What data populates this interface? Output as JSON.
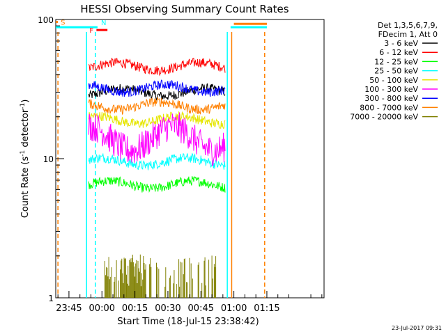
{
  "chart_data": {
    "type": "line",
    "title": "HESSI Observing Summary Count Rates",
    "xlabel": "Start Time (18-Jul-15 23:38:42)",
    "ylabel_main": "Count Rate (s",
    "ylabel_sup1": "-1",
    "ylabel_mid": " detector",
    "ylabel_sup2": "-1",
    "ylabel_end": ")",
    "yscale": "log",
    "ylim": [
      1,
      100
    ],
    "xlim_minutes": [
      -21,
      101
    ],
    "y_tick_labels": [
      {
        "label": "100",
        "value": 100
      },
      {
        "label": "10",
        "value": 10
      },
      {
        "label": "1",
        "value": 1
      }
    ],
    "x_tick_labels": [
      {
        "label": "23:45",
        "minutes": -15
      },
      {
        "label": "00:00",
        "minutes": 0
      },
      {
        "label": "00:15",
        "minutes": 15
      },
      {
        "label": "00:30",
        "minutes": 30
      },
      {
        "label": "00:45",
        "minutes": 45
      },
      {
        "label": "01:00",
        "minutes": 60
      },
      {
        "label": "01:15",
        "minutes": 75
      }
    ],
    "legend_header": [
      "Det 1,3,5,6,7,9,",
      "FDecim 1, Att 0"
    ],
    "series": [
      {
        "name": "3 - 6 keV",
        "color": "#000000",
        "level": 30,
        "start": -6,
        "end": 56
      },
      {
        "name": "6 - 12 keV",
        "color": "#ff0000",
        "level": 46,
        "start": -6,
        "end": 56
      },
      {
        "name": "12 - 25 keV",
        "color": "#00ff00",
        "level": 6.5,
        "start": -6,
        "end": 56
      },
      {
        "name": "25 - 50 keV",
        "color": "#00ffff",
        "level": 9.5,
        "start": -6,
        "end": 56
      },
      {
        "name": "50 - 100 keV",
        "color": "#e6e600",
        "level": 19,
        "start": -6,
        "end": 56
      },
      {
        "name": "100 - 300 keV",
        "color": "#ff00ff",
        "level": 14,
        "start": -6,
        "end": 56
      },
      {
        "name": "300 - 800 keV",
        "color": "#0000ff",
        "level": 32,
        "start": -6,
        "end": 56
      },
      {
        "name": "800 - 7000 keV",
        "color": "#ff8000",
        "level": 24,
        "start": -6,
        "end": 56
      },
      {
        "name": "7000 - 20000 keV",
        "color": "#808000",
        "level": 1.4,
        "start": 1,
        "end": 52
      }
    ],
    "flags": [
      {
        "label": "S",
        "color": "#ff8000",
        "value": 96,
        "start": -21,
        "end": -20
      },
      {
        "label": "N",
        "color": "#00ffff",
        "value": 88,
        "start": -21,
        "end": -2
      },
      {
        "label": "F",
        "color": "#ff0000",
        "value": 84,
        "start": -2.5,
        "end": 2.5
      }
    ],
    "right_flags": [
      {
        "color": "#ff8000",
        "value": 93,
        "start": 60,
        "end": 75
      },
      {
        "color": "#00ffff",
        "value": 88,
        "start": 58.5,
        "end": 75
      }
    ],
    "vlines": [
      {
        "color": "#00ffff",
        "minutes": -7,
        "dashed": false
      },
      {
        "color": "#00ffff",
        "minutes": -3,
        "dashed": true
      },
      {
        "color": "#00ffff",
        "minutes": 57,
        "dashed": false
      },
      {
        "color": "#ff8000",
        "minutes": -20,
        "dashed": true
      },
      {
        "color": "#ff8000",
        "minutes": 59,
        "dashed": false
      },
      {
        "color": "#ff8000",
        "minutes": 74,
        "dashed": true
      }
    ],
    "grid": false,
    "legend_position": "right"
  },
  "footer_date": "23-Jul-2017 09:31"
}
